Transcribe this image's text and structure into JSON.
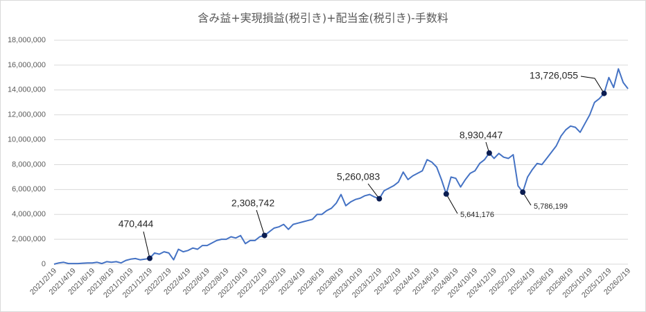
{
  "chart_data": {
    "type": "line",
    "title": "含み益+実現損益(税引き)+配当金(税引き)-手数料",
    "categories": [
      "2021/2/19",
      null,
      null,
      null,
      "2021/4/19",
      null,
      null,
      null,
      "2021/6/19",
      null,
      null,
      null,
      "2021/8/19",
      null,
      null,
      null,
      "2021/10/19",
      null,
      null,
      null,
      "2021/12/19",
      null,
      null,
      null,
      "2022/2/19",
      null,
      null,
      null,
      "2022/4/19",
      null,
      null,
      null,
      "2022/6/19",
      null,
      null,
      null,
      "2022/8/19",
      null,
      null,
      null,
      "2022/10/19",
      null,
      null,
      null,
      "2022/12/19",
      null,
      null,
      null,
      "2023/2/19",
      null,
      null,
      null,
      "2023/4/19",
      null,
      null,
      null,
      "2023/6/19",
      null,
      null,
      null,
      "2023/8/19",
      null,
      null,
      null,
      "2023/10/19",
      null,
      null,
      null,
      "2023/12/19",
      null,
      null,
      null,
      "2024/2/19",
      null,
      null,
      null,
      "2024/4/19",
      null,
      null,
      null,
      "2024/6/19",
      null,
      null,
      null,
      "2024/8/19",
      null,
      null,
      null,
      "2024/10/19",
      null,
      null,
      null,
      "2024/12/19",
      null,
      null,
      null,
      "2025/2/19",
      null,
      null,
      null,
      "2025/4/19",
      null,
      null,
      null,
      "2025/6/19",
      null,
      null,
      null,
      "2025/8/19",
      null,
      null,
      null,
      "2025/10/19",
      null,
      null,
      null,
      "2025/12/19",
      null,
      null,
      null,
      "2026/2/19"
    ],
    "values": [
      0,
      100000,
      150000,
      50000,
      50000,
      50000,
      80000,
      100000,
      100000,
      150000,
      50000,
      200000,
      150000,
      200000,
      100000,
      300000,
      400000,
      450000,
      350000,
      400000,
      470444,
      900000,
      800000,
      1000000,
      900000,
      350000,
      1200000,
      1000000,
      1100000,
      1300000,
      1200000,
      1500000,
      1500000,
      1700000,
      1900000,
      2000000,
      2000000,
      2200000,
      2100000,
      2300000,
      1650000,
      1900000,
      1900000,
      2200000,
      2308742,
      2600000,
      2900000,
      3000000,
      3200000,
      2800000,
      3200000,
      3300000,
      3400000,
      3500000,
      3600000,
      4000000,
      4000000,
      4300000,
      4500000,
      4900000,
      5600000,
      4700000,
      5000000,
      5200000,
      5300000,
      5500000,
      5600000,
      5400000,
      5260083,
      5900000,
      6100000,
      6300000,
      6600000,
      7400000,
      6800000,
      7100000,
      7300000,
      7500000,
      8400000,
      8200000,
      7800000,
      6800000,
      5641176,
      7000000,
      6900000,
      6200000,
      6800000,
      7300000,
      7500000,
      8100000,
      8400000,
      8930447,
      8500000,
      8900000,
      8600000,
      8500000,
      8800000,
      6300000,
      5786199,
      7000000,
      7600000,
      8100000,
      8000000,
      8500000,
      9000000,
      9500000,
      10300000,
      10800000,
      11100000,
      11000000,
      10600000,
      11300000,
      12000000,
      13000000,
      13300000,
      13726055,
      15000000,
      14200000,
      15700000,
      14600000,
      14100000
    ],
    "value_labels": [
      null,
      null,
      null,
      null,
      null,
      null,
      null,
      null,
      null,
      null,
      null,
      null,
      null,
      null,
      null,
      null,
      null,
      null,
      null,
      null,
      "470,444",
      null,
      null,
      null,
      null,
      null,
      null,
      null,
      null,
      null,
      null,
      null,
      null,
      null,
      null,
      null,
      null,
      null,
      null,
      null,
      null,
      null,
      null,
      null,
      "2,308,742",
      null,
      null,
      null,
      null,
      null,
      null,
      null,
      null,
      null,
      null,
      null,
      null,
      null,
      null,
      null,
      null,
      null,
      null,
      null,
      null,
      null,
      null,
      null,
      "5,260,083",
      null,
      null,
      null,
      null,
      null,
      null,
      null,
      null,
      null,
      null,
      null,
      null,
      null,
      "5,641,176",
      null,
      null,
      null,
      null,
      null,
      null,
      null,
      null,
      "8,930,447",
      null,
      null,
      null,
      null,
      null,
      null,
      "5,786,199",
      null,
      null,
      null,
      null,
      null,
      null,
      null,
      null,
      null,
      null,
      null,
      null,
      null,
      null,
      null,
      null,
      "13,726,055",
      null,
      null,
      null,
      null,
      null
    ],
    "color": "#4472c4",
    "marker_color": "#0b1d51",
    "ylim": [
      0,
      18000000
    ],
    "yticks": [
      0,
      {
        "value": 2000000,
        "label": "2,000,000"
      },
      {
        "value": 4000000,
        "label": "4,000,000"
      },
      {
        "value": 6000000,
        "label": "6,000,000"
      },
      {
        "value": 8000000,
        "label": "8,000,000"
      },
      {
        "value": 10000000,
        "label": "10,000,000"
      },
      {
        "value": 12000000,
        "label": "12,000,000"
      },
      {
        "value": 14000000,
        "label": "14,000,000"
      },
      {
        "value": 16000000,
        "label": "16,000,000"
      },
      {
        "value": 18000000,
        "label": "18,000,000"
      }
    ],
    "grid": true
  }
}
